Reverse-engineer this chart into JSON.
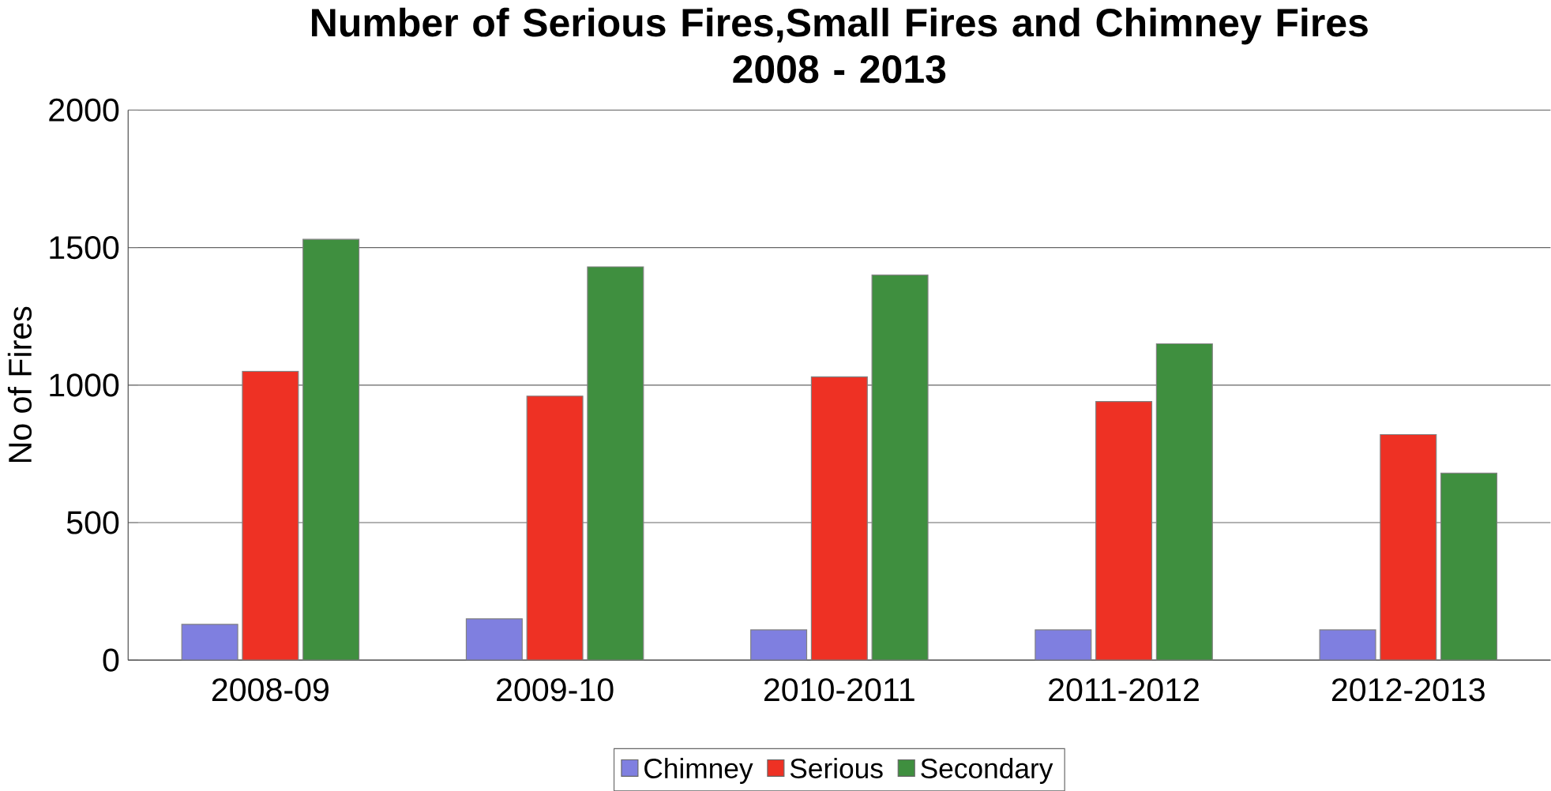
{
  "chart_data": {
    "type": "bar",
    "title": "Number of Serious Fires,Small Fires and Chimney Fires",
    "subtitle": "2008 - 2013",
    "ylabel": "No of Fires",
    "categories": [
      "2008-09",
      "2009-10",
      "2010-2011",
      "2011-2012",
      "2012-2013"
    ],
    "series": [
      {
        "name": "Chimney",
        "color": "#7f7fe0",
        "values": [
          130,
          150,
          110,
          110,
          110
        ]
      },
      {
        "name": "Serious",
        "color": "#ee3124",
        "values": [
          1050,
          960,
          1030,
          940,
          820
        ]
      },
      {
        "name": "Secondary",
        "color": "#3f8f3f",
        "values": [
          1530,
          1430,
          1400,
          1150,
          680
        ]
      }
    ],
    "ylim": [
      0,
      2000
    ],
    "yticks": [
      0,
      500,
      1000,
      1500,
      2000
    ],
    "grid": "y",
    "legend": "bottom"
  }
}
